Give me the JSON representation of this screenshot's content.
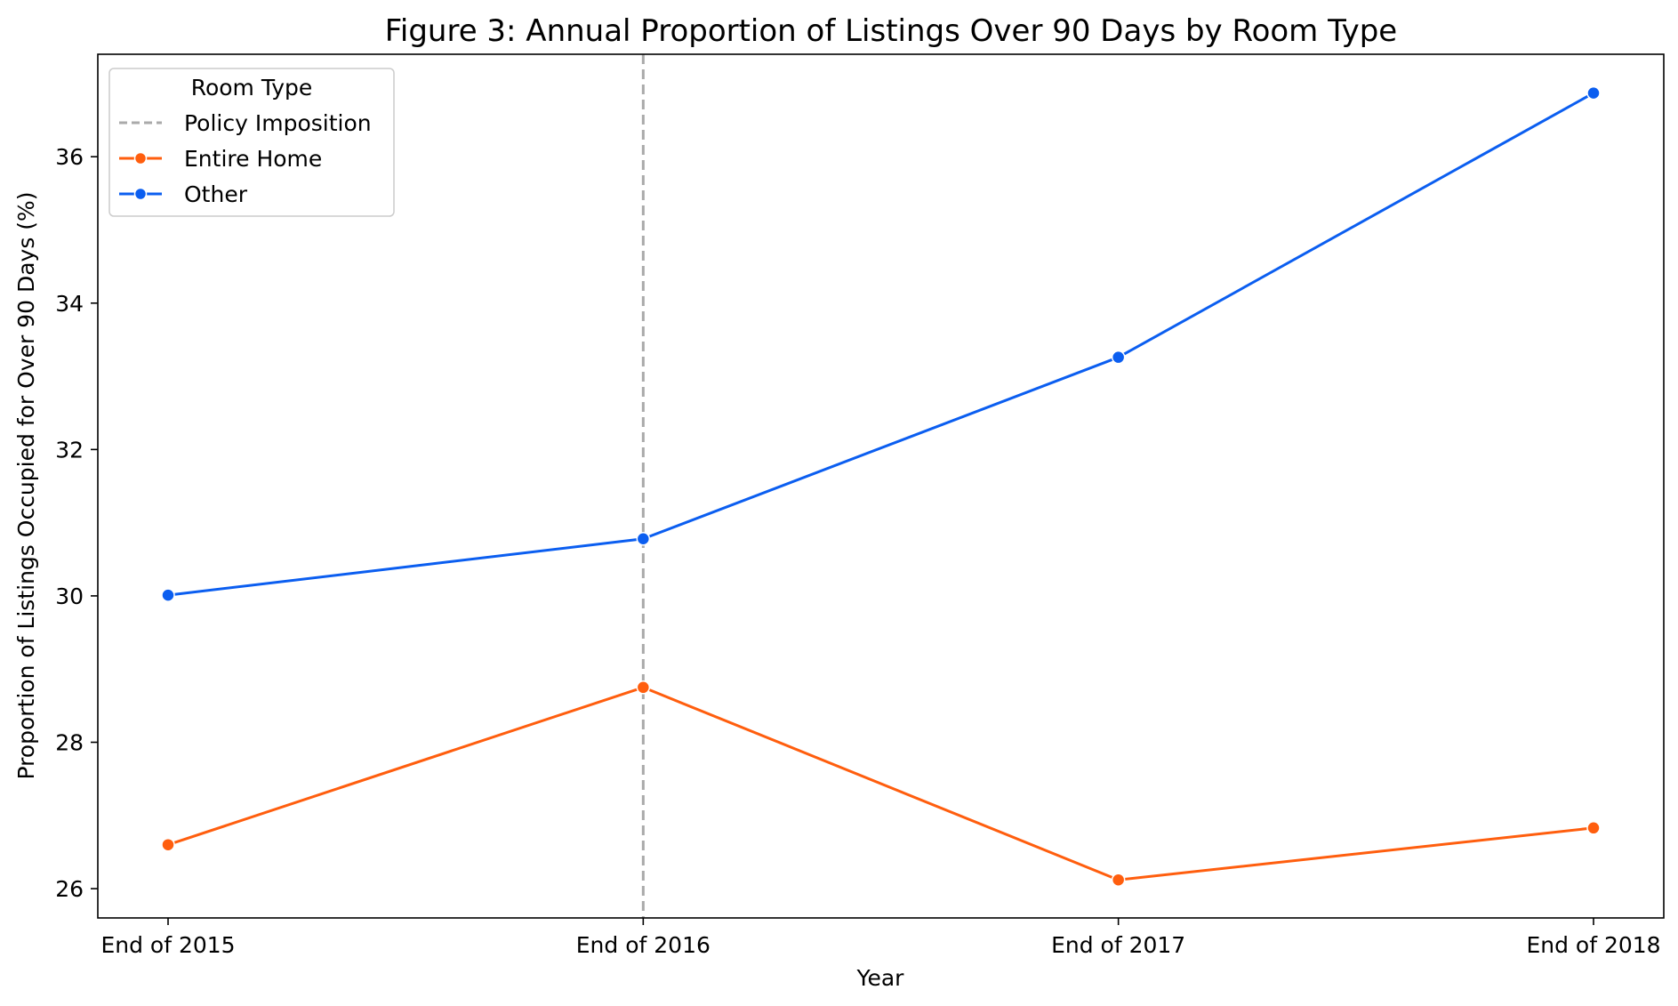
{
  "chart_data": {
    "type": "line",
    "title": "Figure 3: Annual Proportion of Listings Over 90 Days by Room Type",
    "xlabel": "Year",
    "ylabel": "Proportion of Listings Occupied for Over 90 Days (%)",
    "categories": [
      "End of 2015",
      "End of 2016",
      "End of 2017",
      "End of 2018"
    ],
    "ylim": [
      25.6,
      37.4
    ],
    "yticks": [
      26,
      28,
      30,
      32,
      34,
      36
    ],
    "grid": false,
    "legend": {
      "title": "Room Type",
      "placement": "top-left",
      "entries": [
        "Policy Imposition",
        "Entire Home",
        "Other"
      ]
    },
    "reference_line": {
      "name": "Policy Imposition",
      "x": "End of 2016",
      "style": "dashed",
      "color": "#aaaaaa"
    },
    "series": [
      {
        "name": "Entire Home",
        "color": "#ff5e0e",
        "values": [
          26.6,
          28.75,
          26.12,
          26.83
        ]
      },
      {
        "name": "Other",
        "color": "#0b5ef0",
        "values": [
          30.01,
          30.78,
          33.26,
          36.87
        ]
      }
    ]
  }
}
